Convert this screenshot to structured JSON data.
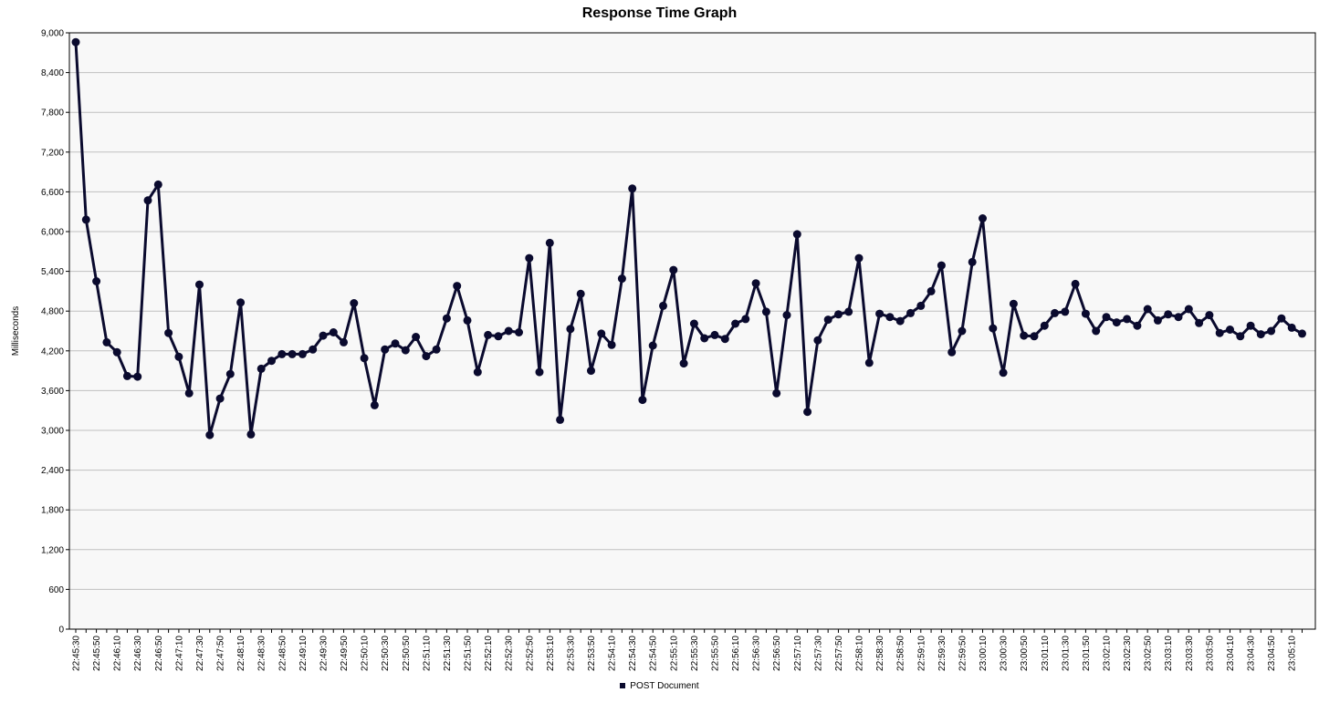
{
  "chart_data": {
    "type": "line",
    "title": "Response Time Graph",
    "ylabel": "Milliseconds",
    "xlabel": "",
    "ylim": [
      0,
      9000
    ],
    "yticks": [
      0,
      600,
      1200,
      1800,
      2400,
      3000,
      3600,
      4200,
      4800,
      5400,
      6000,
      6600,
      7200,
      7800,
      8400,
      9000
    ],
    "ytick_labels": [
      "0",
      "600",
      "1,200",
      "1,800",
      "2,400",
      "3,000",
      "3,600",
      "4,200",
      "4,800",
      "5,400",
      "6,000",
      "6,600",
      "7,200",
      "7,800",
      "8,400",
      "9,000"
    ],
    "x_labels": [
      "22:45:30",
      "22:45:50",
      "22:46:10",
      "22:46:30",
      "22:46:50",
      "22:47:10",
      "22:47:30",
      "22:47:50",
      "22:48:10",
      "22:48:30",
      "22:48:50",
      "22:49:10",
      "22:49:30",
      "22:49:50",
      "22:50:10",
      "22:50:30",
      "22:50:50",
      "22:51:10",
      "22:51:30",
      "22:51:50",
      "22:52:10",
      "22:52:30",
      "22:52:50",
      "22:53:10",
      "22:53:30",
      "22:53:50",
      "22:54:10",
      "22:54:30",
      "22:54:50",
      "22:55:10",
      "22:55:30",
      "22:55:50",
      "22:56:10",
      "22:56:30",
      "22:56:50",
      "22:57:10",
      "22:57:30",
      "22:57:50",
      "22:58:10",
      "22:58:30",
      "22:58:50",
      "22:59:10",
      "22:59:30",
      "22:59:50",
      "23:00:10",
      "23:00:30",
      "23:00:50",
      "23:01:10",
      "23:01:30",
      "23:01:50",
      "23:02:10",
      "23:02:30",
      "23:02:50",
      "23:03:10",
      "23:03:30",
      "23:03:50",
      "23:04:10",
      "23:04:30",
      "23:04:50",
      "23:05:10"
    ],
    "grid": true,
    "legend_position": "bottom-center",
    "series": [
      {
        "name": "POST Document",
        "color": "#0a0a2e",
        "values": [
          8860,
          6180,
          5250,
          4330,
          4180,
          3820,
          3810,
          6470,
          6710,
          4470,
          4110,
          3560,
          5200,
          2930,
          3480,
          3850,
          4930,
          2940,
          3930,
          4050,
          4150,
          4150,
          4150,
          4220,
          4430,
          4480,
          4330,
          4920,
          4090,
          3380,
          4220,
          4310,
          4210,
          4410,
          4120,
          4220,
          4690,
          5180,
          4660,
          3880,
          4440,
          4420,
          4500,
          4480,
          5600,
          3880,
          5830,
          3160,
          4530,
          5060,
          3900,
          4460,
          4290,
          5290,
          6650,
          3460,
          4280,
          4880,
          5420,
          4010,
          4610,
          4390,
          4440,
          4380,
          4610,
          4680,
          5220,
          4790,
          3560,
          4740,
          5960,
          3280,
          4360,
          4670,
          4750,
          4790,
          5600,
          4020,
          4760,
          4710,
          4650,
          4770,
          4880,
          5100,
          5490,
          4180,
          4500,
          5540,
          6200,
          4540,
          3870,
          4910,
          4430,
          4420,
          4580,
          4770,
          4790,
          5210,
          4760,
          4500,
          4710,
          4630,
          4680,
          4580,
          4830,
          4660,
          4750,
          4710,
          4830,
          4620,
          4740,
          4470,
          4520,
          4420,
          4580,
          4450,
          4500,
          4690,
          4550,
          4460
        ]
      }
    ]
  }
}
